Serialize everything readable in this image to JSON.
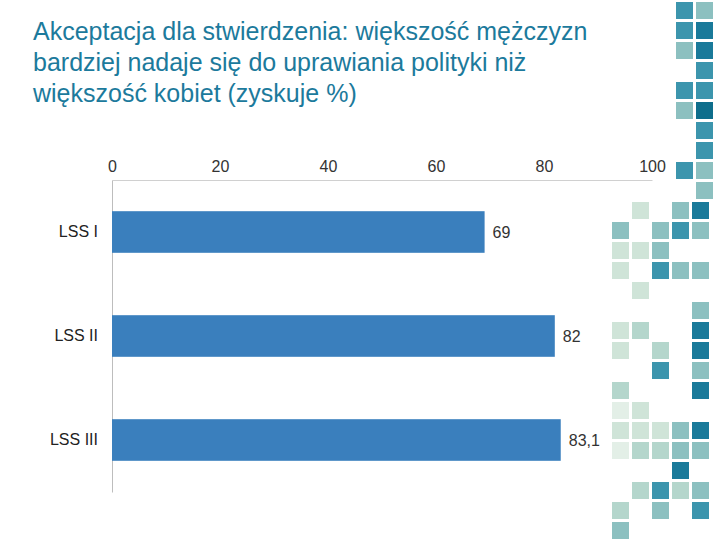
{
  "chart_data": {
    "type": "bar",
    "orientation": "horizontal",
    "title": "Akceptacja dla stwierdzenia: większość mężczyzn bardziej nadaje się do uprawiania polityki niż większość kobiet (zyskuje %)",
    "categories": [
      "LSS I",
      "LSS II",
      "LSS III"
    ],
    "values": [
      69,
      82,
      83.1
    ],
    "value_labels": [
      "69",
      "82",
      "83,1"
    ],
    "color": "#3a7fbd",
    "xlim": [
      0,
      100
    ],
    "xticks": [
      0,
      20,
      40,
      60,
      80,
      100
    ],
    "data_labels": true,
    "grid": false
  }
}
